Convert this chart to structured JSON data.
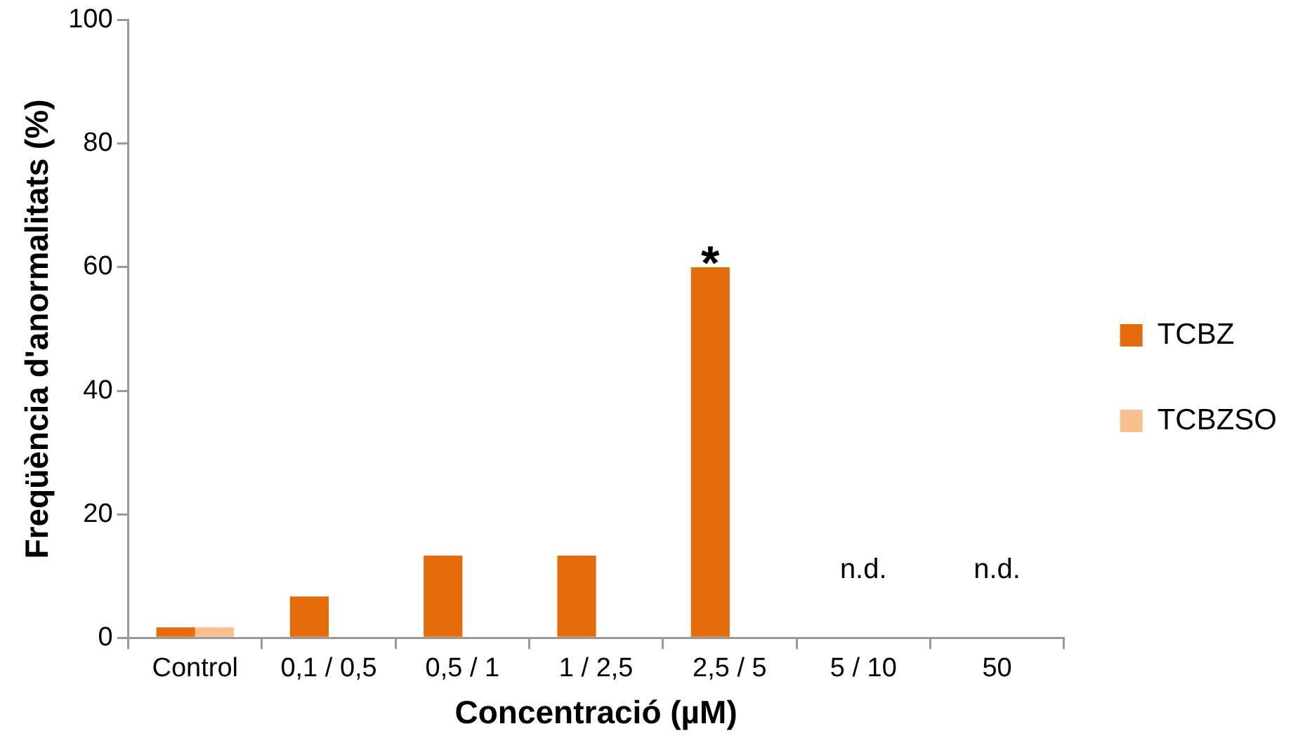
{
  "chart_data": {
    "type": "bar",
    "xlabel": "Concentració (µM)",
    "ylabel": "Freqüència d'anormalitats (%)",
    "categories": [
      "Control",
      "0,1 / 0,5",
      "0,5 / 1",
      "1 / 2,5",
      "2,5 / 5",
      "5 / 10",
      "50"
    ],
    "series": [
      {
        "name": "TCBZ",
        "color": "#e46c0a",
        "values": [
          1.7,
          6.7,
          13.3,
          13.3,
          60,
          null,
          null
        ]
      },
      {
        "name": "TCBZSO",
        "color": "#fac090",
        "values": [
          1.7,
          null,
          null,
          null,
          null,
          null,
          null
        ]
      }
    ],
    "ylim": [
      0,
      100
    ],
    "yticks": [
      0,
      20,
      40,
      60,
      80,
      100
    ],
    "grid": false,
    "legend": "right",
    "annotations": [
      {
        "text": "*",
        "x": "2,5 / 5",
        "y": 60
      },
      "n.d.",
      "n.d."
    ]
  }
}
